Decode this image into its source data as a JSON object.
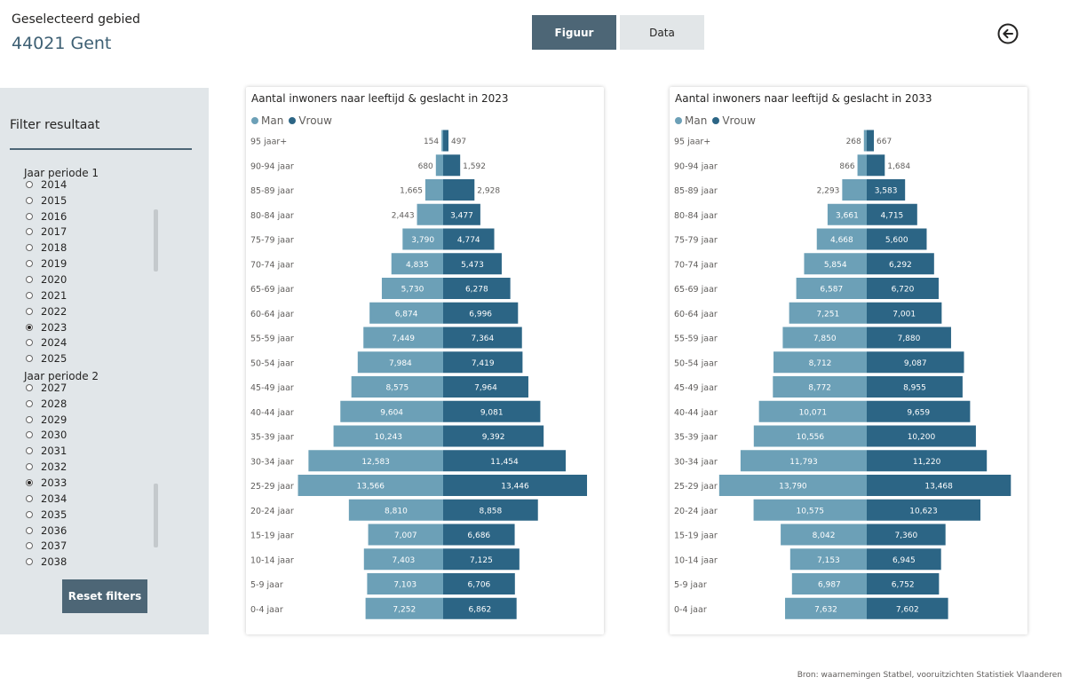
{
  "header": {
    "label": "Geselecteerd gebied",
    "value": "44021 Gent"
  },
  "tabs": [
    {
      "label": "Figuur",
      "active": true
    },
    {
      "label": "Data",
      "active": false
    }
  ],
  "back_icon": "arrow-left-circle-icon",
  "filter": {
    "title": "Filter resultaat",
    "period1": {
      "title": "Jaar periode 1",
      "visible_options": [
        "2014",
        "2015",
        "2016",
        "2017",
        "2018",
        "2019",
        "2020",
        "2021",
        "2022",
        "2023",
        "2024",
        "2025"
      ],
      "selected": "2023"
    },
    "period2": {
      "title": "Jaar periode 2",
      "visible_options": [
        "2027",
        "2028",
        "2029",
        "2030",
        "2031",
        "2032",
        "2033",
        "2034",
        "2035",
        "2036",
        "2037",
        "2038"
      ],
      "selected": "2033"
    },
    "reset_label": "Reset filters"
  },
  "colors": {
    "man": "#6ca0b7",
    "vrouw": "#2c6585",
    "accent": "#4d6676"
  },
  "chart_data": [
    {
      "type": "bar",
      "title": "Aantal inwoners naar leeftijd & geslacht in 2023",
      "categories": [
        "95 jaar+",
        "90-94 jaar",
        "85-89 jaar",
        "80-84 jaar",
        "75-79 jaar",
        "70-74 jaar",
        "65-69 jaar",
        "60-64 jaar",
        "55-59 jaar",
        "50-54 jaar",
        "45-49 jaar",
        "40-44 jaar",
        "35-39 jaar",
        "30-34 jaar",
        "25-29 jaar",
        "20-24 jaar",
        "15-19 jaar",
        "10-14 jaar",
        "5-9 jaar",
        "0-4 jaar"
      ],
      "series": [
        {
          "name": "Man",
          "values": [
            154,
            680,
            1665,
            2443,
            3790,
            4835,
            5730,
            6874,
            7449,
            7984,
            8575,
            9604,
            10243,
            12583,
            13566,
            8810,
            7007,
            7403,
            7103,
            7252
          ]
        },
        {
          "name": "Vrouw",
          "values": [
            497,
            1592,
            2928,
            3477,
            4774,
            5473,
            6278,
            6996,
            7364,
            7419,
            7964,
            9081,
            9392,
            11454,
            13446,
            8858,
            6686,
            7125,
            6706,
            6862
          ]
        }
      ],
      "legend": "top-left"
    },
    {
      "type": "bar",
      "title": "Aantal inwoners naar leeftijd & geslacht in 2033",
      "categories": [
        "95 jaar+",
        "90-94 jaar",
        "85-89 jaar",
        "80-84 jaar",
        "75-79 jaar",
        "70-74 jaar",
        "65-69 jaar",
        "60-64 jaar",
        "55-59 jaar",
        "50-54 jaar",
        "45-49 jaar",
        "40-44 jaar",
        "35-39 jaar",
        "30-34 jaar",
        "25-29 jaar",
        "20-24 jaar",
        "15-19 jaar",
        "10-14 jaar",
        "5-9 jaar",
        "0-4 jaar"
      ],
      "series": [
        {
          "name": "Man",
          "values": [
            268,
            866,
            2293,
            3661,
            4668,
            5854,
            6587,
            7251,
            7850,
            8712,
            8772,
            10071,
            10556,
            11793,
            13790,
            10575,
            8042,
            7153,
            6987,
            7632
          ]
        },
        {
          "name": "Vrouw",
          "values": [
            667,
            1684,
            3583,
            4715,
            5600,
            6292,
            6720,
            7001,
            7880,
            9087,
            8955,
            9659,
            10200,
            11220,
            13468,
            10623,
            7360,
            6945,
            6752,
            7602
          ]
        }
      ],
      "legend": "top-left"
    }
  ],
  "source": "Bron: waarnemingen Statbel, vooruitzichten Statistiek Vlaanderen"
}
